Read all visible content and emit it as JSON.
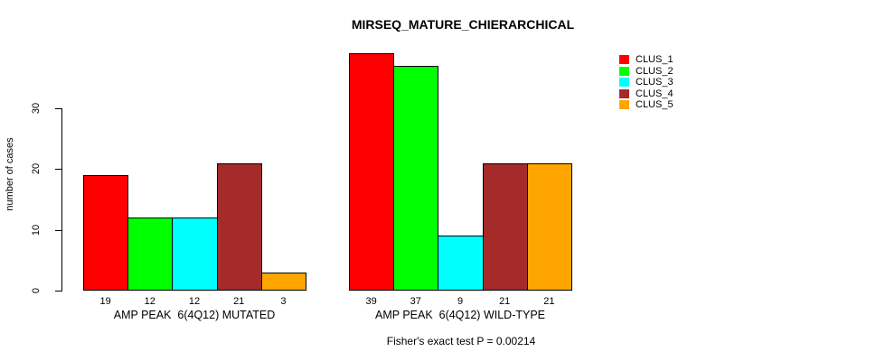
{
  "chart_data": {
    "type": "bar",
    "title": "MIRSEQ_MATURE_CHIERARCHICAL",
    "subtitle": "Fisher's exact test P = 0.00214",
    "ylabel": "number of cases",
    "ylim": [
      0,
      30
    ],
    "yticks": [
      0,
      10,
      20,
      30
    ],
    "categories": [
      "AMP PEAK  6(4Q12) MUTATED",
      "AMP PEAK  6(4Q12) WILD-TYPE"
    ],
    "series": [
      {
        "name": "CLUS_1",
        "color": "#ff0000",
        "values": [
          19,
          39
        ]
      },
      {
        "name": "CLUS_2",
        "color": "#00ff00",
        "values": [
          12,
          37
        ]
      },
      {
        "name": "CLUS_3",
        "color": "#00ffff",
        "values": [
          12,
          9
        ]
      },
      {
        "name": "CLUS_4",
        "color": "#a52a2a",
        "values": [
          21,
          21
        ]
      },
      {
        "name": "CLUS_5",
        "color": "#ffa500",
        "values": [
          3,
          21
        ]
      }
    ],
    "value_labels_shown": true,
    "legend_position": "right",
    "grid": false,
    "bar_border_color": "#000000",
    "background_color": "#ffffff",
    "text_color": "#000000"
  }
}
